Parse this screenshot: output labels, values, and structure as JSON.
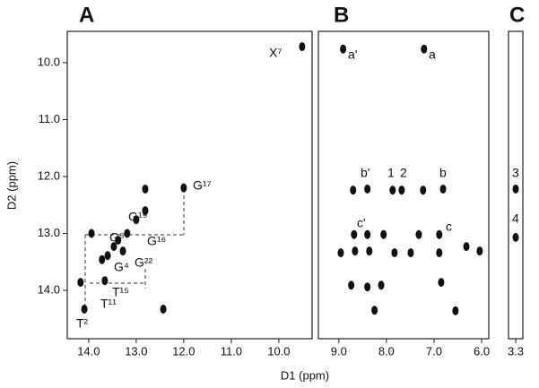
{
  "chart_data": [
    {
      "type": "scatter",
      "title": "A",
      "ylabel": "D2 (ppm)",
      "color": "#111",
      "x": [
        9.51,
        12.0,
        12.81,
        12.81,
        13.0,
        13.19,
        13.38,
        13.47,
        13.6,
        13.72,
        13.28,
        13.66,
        14.17,
        14.09,
        13.94,
        12.43
      ],
      "values": [
        9.72,
        12.2,
        12.22,
        12.6,
        12.76,
        13.0,
        13.12,
        13.23,
        13.39,
        13.46,
        13.31,
        13.83,
        13.86,
        14.33,
        13.0,
        14.33
      ],
      "xlim": [
        14.45,
        9.3
      ],
      "ylim": [
        9.45,
        14.85
      ],
      "xticks": [
        {
          "value": 14,
          "label": "14.0"
        },
        {
          "value": 13,
          "label": "13.0"
        },
        {
          "value": 12,
          "label": "12.0"
        },
        {
          "value": 11,
          "label": "11.0"
        },
        {
          "value": 10,
          "label": "10.0"
        }
      ],
      "yticks": [
        {
          "value": 10,
          "label": "10.0"
        },
        {
          "value": 11,
          "label": "11.0"
        },
        {
          "value": 12,
          "label": "12.0"
        },
        {
          "value": 13,
          "label": "13.0"
        },
        {
          "value": 14,
          "label": "14.0"
        }
      ],
      "labels": [
        "X⁷",
        "G¹⁷",
        "G¹⁹",
        "G⁵",
        "G¹⁶",
        "G⁴",
        "G²²",
        "T¹⁵",
        "T¹¹",
        "T²"
      ]
    },
    {
      "type": "scatter",
      "title": "B",
      "xlabel": "D1 (ppm)",
      "color": "#111",
      "x": [
        8.91,
        7.21,
        8.4,
        6.81,
        7.87,
        7.68,
        8.7,
        7.23,
        8.68,
        8.4,
        8.06,
        7.32,
        6.89,
        8.96,
        8.66,
        8.36,
        7.83,
        7.49,
        6.89,
        6.32,
        6.04,
        8.4,
        8.11,
        8.74,
        6.85,
        8.25,
        6.55
      ],
      "values": [
        9.76,
        9.76,
        12.22,
        12.22,
        12.24,
        12.24,
        12.24,
        12.24,
        13.02,
        13.02,
        13.02,
        13.02,
        13.02,
        13.34,
        13.31,
        13.31,
        13.34,
        13.34,
        13.34,
        13.23,
        13.31,
        13.94,
        13.91,
        13.91,
        13.86,
        14.35,
        14.36
      ],
      "xlim": [
        9.43,
        5.85
      ],
      "ylim": [
        9.45,
        14.85
      ],
      "xticks": [
        {
          "value": 9,
          "label": "9.0"
        },
        {
          "value": 8,
          "label": "8.0"
        },
        {
          "value": 7,
          "label": "7.0"
        },
        {
          "value": 6,
          "label": "6.0"
        }
      ],
      "labels": [
        "a'",
        "a",
        "b'",
        "b",
        "1",
        "2",
        "c'",
        "c"
      ]
    },
    {
      "type": "scatter",
      "title": "C",
      "color": "#111",
      "x": [
        3.3,
        3.3
      ],
      "values": [
        12.22,
        13.07
      ],
      "xlim": [
        3.45,
        3.15
      ],
      "ylim": [
        9.45,
        14.85
      ],
      "xticks": [
        3.3
      ],
      "labels": [
        "3",
        "4"
      ]
    }
  ]
}
